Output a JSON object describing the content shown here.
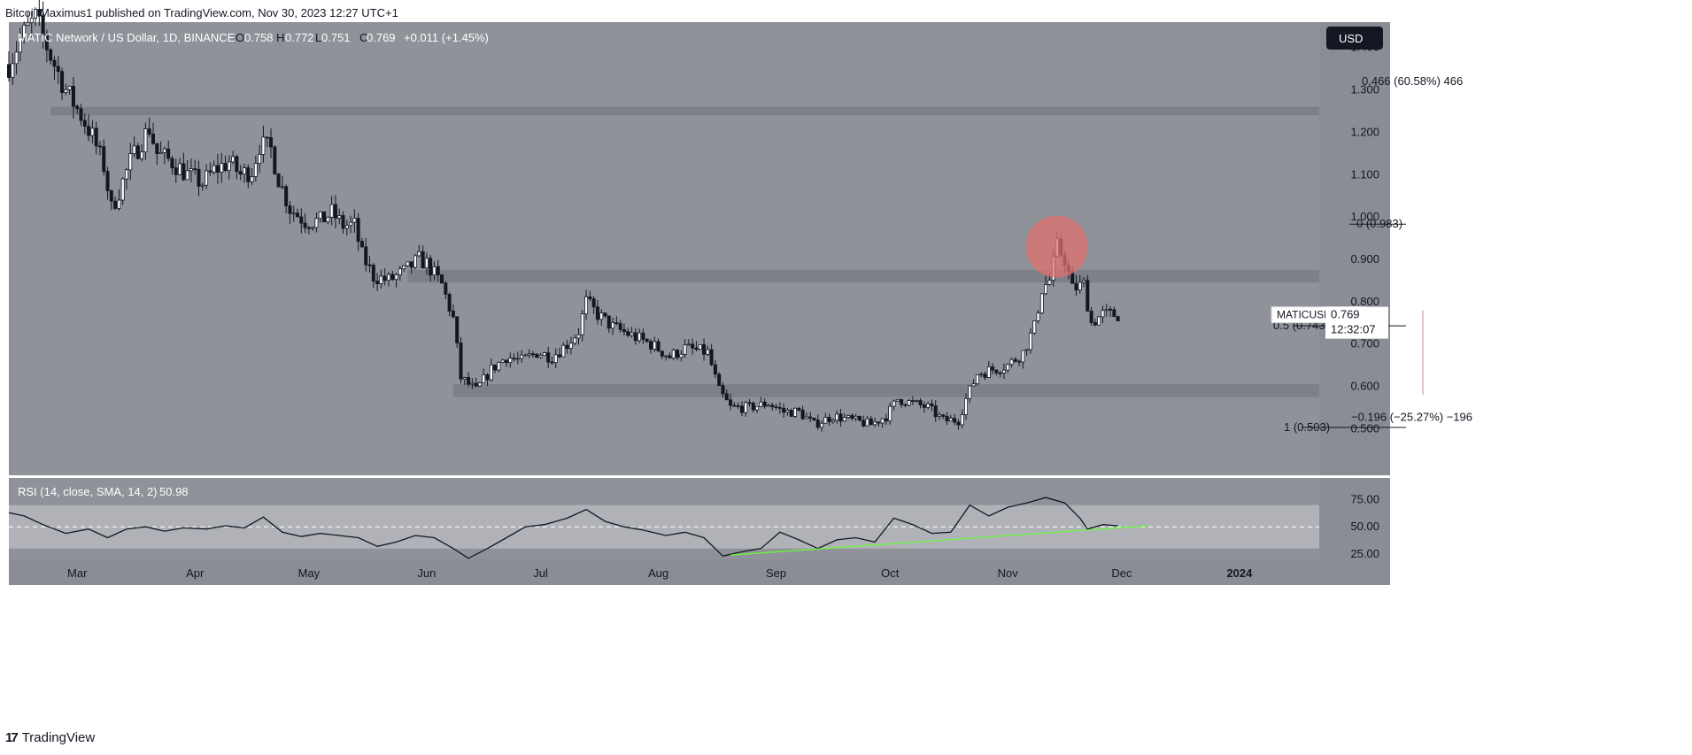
{
  "header": {
    "published": "BitcoinMaximus1 published on TradingView.com, Nov 30, 2023 12:27 UTC+1"
  },
  "footer": {
    "brand": "TradingView"
  },
  "legend": {
    "symbol": "MATIC Network / US Dollar, 1D, BINANCE",
    "o_label": "O",
    "o": "0.758",
    "h_label": "H",
    "h": "0.772",
    "l_label": "L",
    "l": "0.751",
    "c_label": "C",
    "c": "0.769",
    "change": "+0.011 (+1.45%)"
  },
  "currency_button": "USD",
  "price_tag": {
    "symbol": "MATICUSD",
    "price": "0.769",
    "countdown": "12:32:07"
  },
  "colors": {
    "plot_bg": "#8f9299",
    "zone": "#7d8087",
    "candle": "#131722",
    "circle": "#e07070",
    "trendline": "#66ff33",
    "rsi_band": "#b0b2b8",
    "axis_bg": "#8a8d93",
    "price_tag_bg": "#ffffff"
  },
  "chart_data": [
    {
      "type": "candlestick",
      "title": "MATIC Network / US Dollar, 1D, BINANCE",
      "x_range": [
        "2023-02-11",
        "2024-01-22"
      ],
      "xticks": [
        {
          "date": "2023-03-01",
          "label": "Mar"
        },
        {
          "date": "2023-04-01",
          "label": "Apr"
        },
        {
          "date": "2023-05-01",
          "label": "May"
        },
        {
          "date": "2023-06-01",
          "label": "Jun"
        },
        {
          "date": "2023-07-01",
          "label": "Jul"
        },
        {
          "date": "2023-08-01",
          "label": "Aug"
        },
        {
          "date": "2023-09-01",
          "label": "Sep"
        },
        {
          "date": "2023-10-01",
          "label": "Oct"
        },
        {
          "date": "2023-11-01",
          "label": "Nov"
        },
        {
          "date": "2023-12-01",
          "label": "Dec"
        },
        {
          "date": "2024-01-01",
          "label": "2024"
        }
      ],
      "ylim": [
        0.39,
        1.46
      ],
      "yticks": [
        "1.400",
        "1.300",
        "1.200",
        "1.100",
        "1.000",
        "0.900",
        "0.800",
        "0.700",
        "0.600",
        "0.500"
      ],
      "path": [
        [
          "2023-02-11",
          1.36
        ],
        [
          "2023-02-14",
          1.42
        ],
        [
          "2023-02-18",
          1.47
        ],
        [
          "2023-02-22",
          1.38
        ],
        [
          "2023-02-26",
          1.3
        ],
        [
          "2023-03-02",
          1.24
        ],
        [
          "2023-03-05",
          1.19
        ],
        [
          "2023-03-08",
          1.12
        ],
        [
          "2023-03-10",
          1.02
        ],
        [
          "2023-03-12",
          1.06
        ],
        [
          "2023-03-15",
          1.13
        ],
        [
          "2023-03-18",
          1.18
        ],
        [
          "2023-03-20",
          1.21
        ],
        [
          "2023-03-22",
          1.15
        ],
        [
          "2023-03-26",
          1.13
        ],
        [
          "2023-03-30",
          1.1
        ],
        [
          "2023-04-03",
          1.08
        ],
        [
          "2023-04-06",
          1.11
        ],
        [
          "2023-04-10",
          1.13
        ],
        [
          "2023-04-13",
          1.1
        ],
        [
          "2023-04-16",
          1.11
        ],
        [
          "2023-04-18",
          1.17
        ],
        [
          "2023-04-21",
          1.16
        ],
        [
          "2023-04-23",
          1.09
        ],
        [
          "2023-04-26",
          1.02
        ],
        [
          "2023-04-30",
          0.99
        ],
        [
          "2023-05-04",
          0.99
        ],
        [
          "2023-05-07",
          1.01
        ],
        [
          "2023-05-10",
          0.98
        ],
        [
          "2023-05-13",
          0.98
        ],
        [
          "2023-05-15",
          0.91
        ],
        [
          "2023-05-18",
          0.86
        ],
        [
          "2023-05-22",
          0.85
        ],
        [
          "2023-05-26",
          0.87
        ],
        [
          "2023-05-30",
          0.9
        ],
        [
          "2023-06-01",
          0.89
        ],
        [
          "2023-06-05",
          0.84
        ],
        [
          "2023-06-08",
          0.76
        ],
        [
          "2023-06-10",
          0.62
        ],
        [
          "2023-06-14",
          0.59
        ],
        [
          "2023-06-18",
          0.64
        ],
        [
          "2023-06-22",
          0.67
        ],
        [
          "2023-06-26",
          0.66
        ],
        [
          "2023-06-30",
          0.68
        ],
        [
          "2023-07-04",
          0.67
        ],
        [
          "2023-07-08",
          0.7
        ],
        [
          "2023-07-11",
          0.73
        ],
        [
          "2023-07-13",
          0.8
        ],
        [
          "2023-07-16",
          0.77
        ],
        [
          "2023-07-20",
          0.74
        ],
        [
          "2023-07-25",
          0.72
        ],
        [
          "2023-07-30",
          0.7
        ],
        [
          "2023-08-04",
          0.67
        ],
        [
          "2023-08-08",
          0.69
        ],
        [
          "2023-08-14",
          0.68
        ],
        [
          "2023-08-17",
          0.59
        ],
        [
          "2023-08-20",
          0.55
        ],
        [
          "2023-08-25",
          0.55
        ],
        [
          "2023-08-30",
          0.56
        ],
        [
          "2023-09-03",
          0.54
        ],
        [
          "2023-09-07",
          0.54
        ],
        [
          "2023-09-11",
          0.51
        ],
        [
          "2023-09-16",
          0.53
        ],
        [
          "2023-09-21",
          0.52
        ],
        [
          "2023-09-26",
          0.51
        ],
        [
          "2023-09-30",
          0.53
        ],
        [
          "2023-10-03",
          0.57
        ],
        [
          "2023-10-07",
          0.56
        ],
        [
          "2023-10-11",
          0.55
        ],
        [
          "2023-10-15",
          0.52
        ],
        [
          "2023-10-19",
          0.52
        ],
        [
          "2023-10-21",
          0.57
        ],
        [
          "2023-10-24",
          0.63
        ],
        [
          "2023-10-28",
          0.64
        ],
        [
          "2023-11-01",
          0.65
        ],
        [
          "2023-11-05",
          0.68
        ],
        [
          "2023-11-08",
          0.74
        ],
        [
          "2023-11-10",
          0.83
        ],
        [
          "2023-11-12",
          0.85
        ],
        [
          "2023-11-14",
          0.93
        ],
        [
          "2023-11-16",
          0.9
        ],
        [
          "2023-11-18",
          0.83
        ],
        [
          "2023-11-21",
          0.84
        ],
        [
          "2023-11-23",
          0.75
        ],
        [
          "2023-11-26",
          0.77
        ],
        [
          "2023-11-30",
          0.769
        ]
      ],
      "zones": [
        {
          "from": 1.24,
          "to": 1.26,
          "start": "2023-02-22"
        },
        {
          "from": 0.845,
          "to": 0.875,
          "start": "2023-05-27"
        },
        {
          "from": 0.575,
          "to": 0.605,
          "start": "2023-06-08"
        }
      ],
      "fib_levels": [
        {
          "label": "0 (0.983)",
          "price": 0.983
        },
        {
          "label": "0.5 (0.743)",
          "price": 0.743
        },
        {
          "label": "1 (0.503)",
          "price": 0.503
        }
      ],
      "measure": {
        "label_top": "0.466 (60.58%) 466",
        "label_bottom": "−0.196 (−25.27%) −196"
      },
      "highlight_circle": {
        "date": "2023-11-14",
        "price": 0.93
      }
    },
    {
      "type": "line",
      "title": "RSI (14, close, SMA, 14, 2)",
      "value_label": "50.98",
      "ylim": [
        20,
        95
      ],
      "yticks": [
        "75.00",
        "50.00",
        "25.00"
      ],
      "band": [
        30,
        70
      ],
      "midline": 50,
      "series": [
        {
          "values": [
            [
              "2023-02-11",
              63
            ],
            [
              "2023-02-15",
              60
            ],
            [
              "2023-02-20",
              52
            ],
            [
              "2023-02-26",
              44
            ],
            [
              "2023-03-04",
              48
            ],
            [
              "2023-03-09",
              40
            ],
            [
              "2023-03-14",
              48
            ],
            [
              "2023-03-19",
              50
            ],
            [
              "2023-03-24",
              46
            ],
            [
              "2023-03-29",
              49
            ],
            [
              "2023-04-04",
              48
            ],
            [
              "2023-04-09",
              51
            ],
            [
              "2023-04-14",
              49
            ],
            [
              "2023-04-19",
              59
            ],
            [
              "2023-04-24",
              45
            ],
            [
              "2023-04-29",
              41
            ],
            [
              "2023-05-04",
              44
            ],
            [
              "2023-05-09",
              42
            ],
            [
              "2023-05-14",
              40
            ],
            [
              "2023-05-19",
              32
            ],
            [
              "2023-05-24",
              36
            ],
            [
              "2023-05-29",
              42
            ],
            [
              "2023-06-03",
              40
            ],
            [
              "2023-06-08",
              30
            ],
            [
              "2023-06-12",
              21
            ],
            [
              "2023-06-17",
              30
            ],
            [
              "2023-06-22",
              40
            ],
            [
              "2023-06-27",
              50
            ],
            [
              "2023-07-02",
              52
            ],
            [
              "2023-07-08",
              58
            ],
            [
              "2023-07-13",
              66
            ],
            [
              "2023-07-18",
              55
            ],
            [
              "2023-07-23",
              50
            ],
            [
              "2023-07-28",
              47
            ],
            [
              "2023-08-03",
              42
            ],
            [
              "2023-08-08",
              45
            ],
            [
              "2023-08-13",
              40
            ],
            [
              "2023-08-18",
              23
            ],
            [
              "2023-08-23",
              27
            ],
            [
              "2023-08-28",
              30
            ],
            [
              "2023-09-02",
              45
            ],
            [
              "2023-09-07",
              38
            ],
            [
              "2023-09-12",
              30
            ],
            [
              "2023-09-17",
              38
            ],
            [
              "2023-09-22",
              40
            ],
            [
              "2023-09-27",
              36
            ],
            [
              "2023-10-02",
              58
            ],
            [
              "2023-10-07",
              52
            ],
            [
              "2023-10-12",
              44
            ],
            [
              "2023-10-17",
              45
            ],
            [
              "2023-10-22",
              70
            ],
            [
              "2023-10-27",
              60
            ],
            [
              "2023-11-01",
              68
            ],
            [
              "2023-11-06",
              72
            ],
            [
              "2023-11-11",
              77
            ],
            [
              "2023-11-16",
              72
            ],
            [
              "2023-11-20",
              58
            ],
            [
              "2023-11-22",
              48
            ],
            [
              "2023-11-26",
              52
            ],
            [
              "2023-11-30",
              51
            ]
          ]
        }
      ],
      "trendline": [
        [
          "2023-08-20",
          24
        ],
        [
          "2023-12-08",
          51
        ]
      ]
    }
  ]
}
